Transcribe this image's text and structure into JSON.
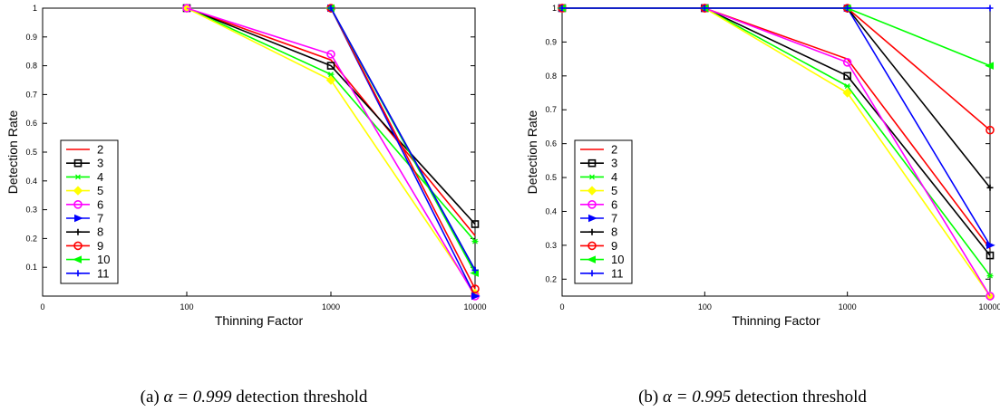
{
  "chart_data": [
    {
      "type": "line",
      "panel": "a",
      "xscale": "log",
      "x": [
        10,
        100,
        1000,
        10000
      ],
      "xticks": [
        "0",
        "100",
        "1000",
        "10000"
      ],
      "xlabel": "Thinning Factor",
      "ylabel": "Detection Rate",
      "ylim": [
        0,
        1
      ],
      "yticks": [
        "0.1",
        "0.2",
        "0.3",
        "0.4",
        "0.5",
        "0.6",
        "0.7",
        "0.8",
        "0.9",
        "1"
      ],
      "legend_position": "left",
      "series": [
        {
          "name": "2",
          "color": "#ff0000",
          "marker": "none",
          "values": [
            null,
            1,
            0.82,
            0.21
          ]
        },
        {
          "name": "3",
          "color": "#000000",
          "marker": "square",
          "values": [
            null,
            1,
            0.8,
            0.25
          ]
        },
        {
          "name": "4",
          "color": "#00ff00",
          "marker": "x",
          "values": [
            null,
            1,
            0.77,
            0.19
          ]
        },
        {
          "name": "5",
          "color": "#ffff00",
          "marker": "diamond",
          "values": [
            null,
            1,
            0.75,
            0.01
          ]
        },
        {
          "name": "6",
          "color": "#ff00ff",
          "marker": "circle",
          "values": [
            null,
            1,
            0.84,
            0.0
          ]
        },
        {
          "name": "7",
          "color": "#0000ff",
          "marker": "triangle-right",
          "values": [
            null,
            null,
            1,
            0.0
          ]
        },
        {
          "name": "8",
          "color": "#000000",
          "marker": "plus",
          "values": [
            null,
            null,
            1,
            0.09
          ]
        },
        {
          "name": "9",
          "color": "#ff0000",
          "marker": "circle",
          "values": [
            null,
            null,
            1,
            0.025
          ]
        },
        {
          "name": "10",
          "color": "#00ff00",
          "marker": "triangle-left",
          "values": [
            null,
            null,
            1,
            0.08
          ]
        },
        {
          "name": "11",
          "color": "#0000ff",
          "marker": "plus",
          "values": [
            null,
            null,
            1,
            0.09
          ]
        }
      ]
    },
    {
      "type": "line",
      "panel": "b",
      "xscale": "log",
      "x": [
        10,
        100,
        1000,
        10000
      ],
      "xticks": [
        "0",
        "100",
        "1000",
        "10000"
      ],
      "xlabel": "Thinning Factor",
      "ylabel": "Detection Rate",
      "ylim": [
        0.15,
        1
      ],
      "yticks": [
        "0.2",
        "0.3",
        "0.4",
        "0.5",
        "0.6",
        "0.7",
        "0.8",
        "0.9",
        "1"
      ],
      "legend_position": "left",
      "series": [
        {
          "name": "2",
          "color": "#ff0000",
          "marker": "none",
          "values": [
            1,
            1,
            0.85,
            0.29
          ]
        },
        {
          "name": "3",
          "color": "#000000",
          "marker": "square",
          "values": [
            1,
            1,
            0.8,
            0.27
          ]
        },
        {
          "name": "4",
          "color": "#00ff00",
          "marker": "x",
          "values": [
            1,
            1,
            0.77,
            0.21
          ]
        },
        {
          "name": "5",
          "color": "#ffff00",
          "marker": "diamond",
          "values": [
            1,
            1,
            0.75,
            0.15
          ]
        },
        {
          "name": "6",
          "color": "#ff00ff",
          "marker": "circle",
          "values": [
            1,
            1,
            0.84,
            0.15
          ]
        },
        {
          "name": "7",
          "color": "#0000ff",
          "marker": "triangle-right",
          "values": [
            1,
            1,
            1,
            0.3
          ]
        },
        {
          "name": "8",
          "color": "#000000",
          "marker": "plus",
          "values": [
            1,
            1,
            1,
            0.47
          ]
        },
        {
          "name": "9",
          "color": "#ff0000",
          "marker": "circle",
          "values": [
            1,
            1,
            1,
            0.64
          ]
        },
        {
          "name": "10",
          "color": "#00ff00",
          "marker": "triangle-left",
          "values": [
            1,
            1,
            1,
            0.83
          ]
        },
        {
          "name": "11",
          "color": "#0000ff",
          "marker": "plus",
          "values": [
            1,
            1,
            1,
            1
          ]
        }
      ]
    }
  ],
  "captions": [
    {
      "prefix": "(a) ",
      "math": "α = 0.999",
      "suffix": " detection threshold"
    },
    {
      "prefix": "(b) ",
      "math": "α = 0.995",
      "suffix": " detection threshold"
    }
  ]
}
